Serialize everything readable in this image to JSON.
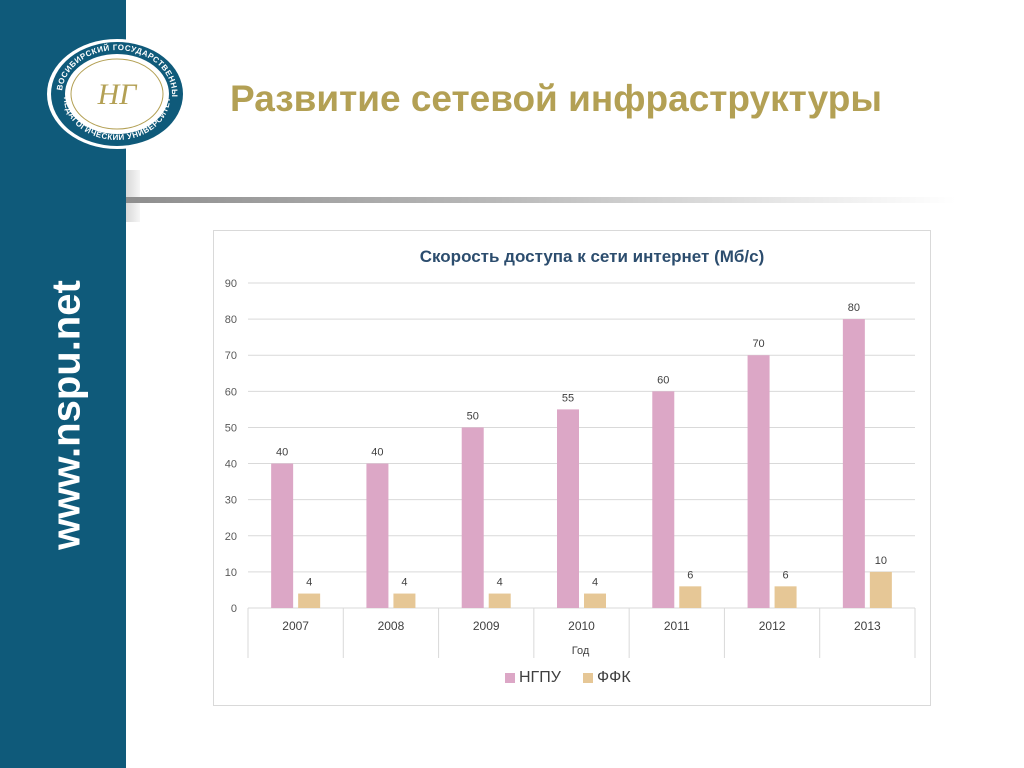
{
  "sidebar": {
    "url": "www.nspu.net"
  },
  "logo": {
    "ring_text_top": "НОВОСИБИРСКИЙ ГОСУДАРСТВЕННЫЙ",
    "ring_text_bottom": "ПЕДАГОГИЧЕСКИЙ УНИВЕРСИТЕТ",
    "monogram": "НГ"
  },
  "slide": {
    "title": "Развитие сетевой инфраструктуры"
  },
  "colors": {
    "sidebar": "#0f5a7a",
    "title": "#b3a054",
    "series_ngpu": "#dca7c6",
    "series_ffk": "#e6c796"
  },
  "chart_data": {
    "type": "bar",
    "title": "Скорость доступа к сети интернет (Мб/с)",
    "xlabel": "Год",
    "ylabel": "",
    "categories": [
      "2007",
      "2008",
      "2009",
      "2010",
      "2011",
      "2012",
      "2013"
    ],
    "series": [
      {
        "name": "НГПУ",
        "values": [
          40,
          40,
          50,
          55,
          60,
          70,
          80
        ],
        "color": "#dca7c6"
      },
      {
        "name": "ФФК",
        "values": [
          4,
          4,
          4,
          4,
          6,
          6,
          10
        ],
        "color": "#e6c796"
      }
    ],
    "ylim": [
      0,
      90
    ],
    "yticks": [
      "0",
      "10",
      "20",
      "30",
      "40",
      "50",
      "60",
      "70",
      "80",
      "90"
    ],
    "grid": true,
    "legend": "bottom"
  }
}
